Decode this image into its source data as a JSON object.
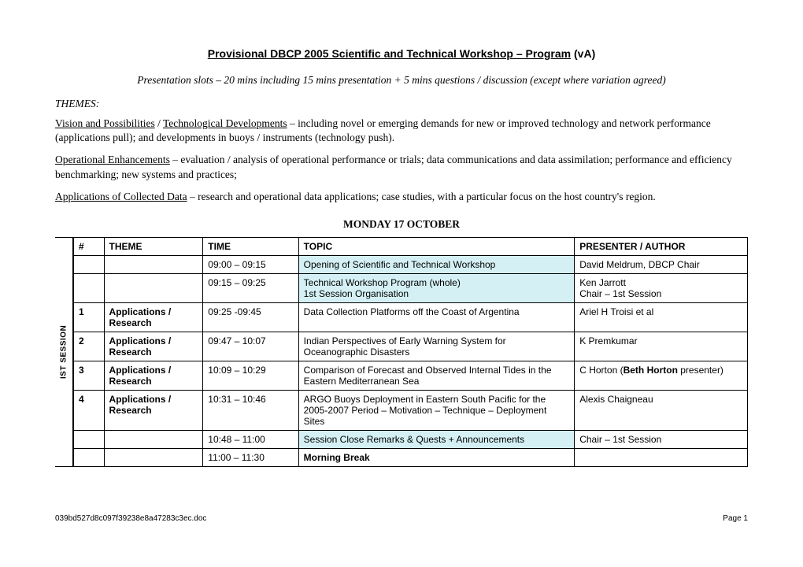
{
  "title_underlined": "Provisional DBCP 2005 Scientific and Technical Workshop – Program",
  "title_suffix": " (vA)",
  "subtitle": "Presentation slots – 20 mins including 15 mins presentation + 5 mins questions / discussion (except where variation agreed)",
  "themes_label": "THEMES:",
  "para1_u1": "Vision and Possibilities",
  "para1_sep": " / ",
  "para1_u2": "Technological Developments",
  "para1_rest": " – including novel or emerging demands for new or improved technology and network performance (applications pull); and developments in buoys / instruments (technology push).",
  "para2_u": "Operational Enhancements",
  "para2_rest": " – evaluation / analysis of operational performance or trials; data communications and data assimilation; performance and efficiency benchmarking; new systems and practices;",
  "para3_u": "Applications of Collected  Data",
  "para3_rest": " – research and operational data applications; case studies, with a particular focus on the host country's region.",
  "day_header": "MONDAY 17 OCTOBER",
  "session_label": "IST SESSION",
  "headers": {
    "num": "#",
    "theme": "THEME",
    "time": "TIME",
    "topic": "TOPIC",
    "presenter": "PRESENTER / AUTHOR"
  },
  "rows": [
    {
      "num": "",
      "theme": "",
      "time": "09:00 – 09:15",
      "topic": "Opening of Scientific and Technical Workshop",
      "presenter": "David Meldrum, DBCP Chair",
      "hl": true,
      "bold_theme": false
    },
    {
      "num": "",
      "theme": "",
      "time": "09:15 – 09:25",
      "topic": "Technical Workshop Program (whole)",
      "topic2": "1st Session Organisation",
      "presenter": "Ken Jarrott",
      "presenter2": "Chair – 1st Session",
      "hl": true,
      "bold_theme": false
    },
    {
      "num": "1",
      "theme": "Applications / Research",
      "time": "09:25 -09:45",
      "topic": "Data Collection Platforms off the Coast of Argentina",
      "presenter": "Ariel H Troisi et al",
      "hl": false,
      "bold_theme": true
    },
    {
      "num": "2",
      "theme": "Applications / Research",
      "time": "09:47 – 10:07",
      "topic": "Indian Perspectives of Early Warning System for Oceanographic Disasters",
      "presenter": "K Premkumar",
      "hl": false,
      "bold_theme": true
    },
    {
      "num": "3",
      "theme": "Applications / Research",
      "time": "10:09 – 10:29",
      "topic": "Comparison of Forecast and Observed Internal Tides in the Eastern Mediterranean Sea",
      "presenter_pre": "C Horton (",
      "presenter_bold": "Beth Horton",
      "presenter_post": " presenter)",
      "hl": false,
      "bold_theme": true
    },
    {
      "num": "4",
      "theme": "Applications / Research",
      "time": "10:31 – 10:46",
      "topic": "ARGO Buoys Deployment in Eastern South Pacific for the 2005-2007 Period – Motivation – Technique – Deployment Sites",
      "presenter": "Alexis Chaigneau",
      "hl": false,
      "bold_theme": true
    },
    {
      "num": "",
      "theme": "",
      "time": "10:48 – 11:00",
      "topic": "Session Close Remarks & Quests  + Announcements",
      "presenter": "Chair – 1st Session",
      "hl": true,
      "bold_theme": false
    },
    {
      "num": "",
      "theme": "",
      "time": "11:00 – 11:30",
      "topic": "Morning Break",
      "topic_bold": true,
      "presenter": "",
      "hl": false,
      "bold_theme": false
    }
  ],
  "footer_left": "039bd527d8c097f39238e8a47283c3ec.doc",
  "footer_right": "Page 1"
}
